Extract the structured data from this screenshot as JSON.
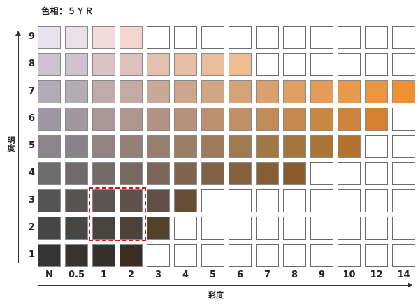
{
  "title": "色相：５ＹＲ",
  "y_axis_label": "明度",
  "x_axis_label": "彩度",
  "chroma_labels": [
    "N",
    "0.5",
    "1",
    "2",
    "3",
    "4",
    "5",
    "6",
    "7",
    "8",
    "9",
    "10",
    "12",
    "14"
  ],
  "value_labels": [
    "9",
    "8",
    "7",
    "6",
    "5",
    "4",
    "3",
    "2",
    "1"
  ],
  "highlight": {
    "values": [
      "3",
      "2"
    ],
    "chromas": [
      "1",
      "2"
    ],
    "color": "#e01010",
    "style": "dashed"
  },
  "rows": [
    {
      "value": "9",
      "colors": [
        "#e7e2ec",
        "#e9e1ea",
        "#f3dadb",
        "#f4d6cf",
        null,
        null,
        null,
        null,
        null,
        null,
        null,
        null,
        null,
        null
      ]
    },
    {
      "value": "8",
      "colors": [
        "#cbc3cf",
        "#cec2cc",
        "#d9c3c6",
        "#ddc1bc",
        "#e3c0b0",
        "#e8bea5",
        "#ecbd9c",
        "#efbc92",
        null,
        null,
        null,
        null,
        null,
        null
      ]
    },
    {
      "value": "7",
      "colors": [
        "#b1abb8",
        "#b5abb4",
        "#beabac",
        "#c3aaa3",
        "#c9a898",
        "#cea68d",
        "#d2a583",
        "#d6a378",
        "#dba06d",
        "#e09e63",
        "#e59c58",
        "#e7994c",
        "#eb963e",
        "#ee9231"
      ]
    },
    {
      "value": "6",
      "colors": [
        "#9f97a3",
        "#a2979f",
        "#a99697",
        "#ae958e",
        "#b39384",
        "#b8927a",
        "#bc906f",
        "#bf8f65",
        "#c28c5a",
        "#c68a50",
        "#ca8845",
        "#cc853b",
        "#d5802d",
        null
      ]
    },
    {
      "value": "5",
      "colors": [
        "#8a848b",
        "#8b8388",
        "#908381",
        "#938179",
        "#977f6f",
        "#9a7d65",
        "#9d7b5b",
        "#a07a51",
        "#a27847",
        "#a4763e",
        "#a97436",
        "#b0722d",
        null,
        null
      ]
    },
    {
      "value": "4",
      "colors": [
        "#6c6b6e",
        "#706a6c",
        "#746a68",
        "#786862",
        "#7c6659",
        "#7f6450",
        "#816247",
        "#84603d",
        "#865e35",
        "#8a5c2c",
        null,
        null,
        null,
        null
      ]
    },
    {
      "value": "3",
      "colors": [
        "#555454",
        "#575453",
        "#5b5450",
        "#5e524b",
        "#625046",
        "#664d36",
        null,
        null,
        null,
        null,
        null,
        null,
        null,
        null
      ]
    },
    {
      "value": "2",
      "colors": [
        "#474646",
        "#484545",
        "#4a4440",
        "#4d423a",
        "#53412c",
        null,
        null,
        null,
        null,
        null,
        null,
        null,
        null,
        null
      ]
    },
    {
      "value": "1",
      "colors": [
        "#353332",
        "#363230",
        "#38302b",
        "#3a2e24",
        null,
        null,
        null,
        null,
        null,
        null,
        null,
        null,
        null,
        null
      ]
    }
  ]
}
